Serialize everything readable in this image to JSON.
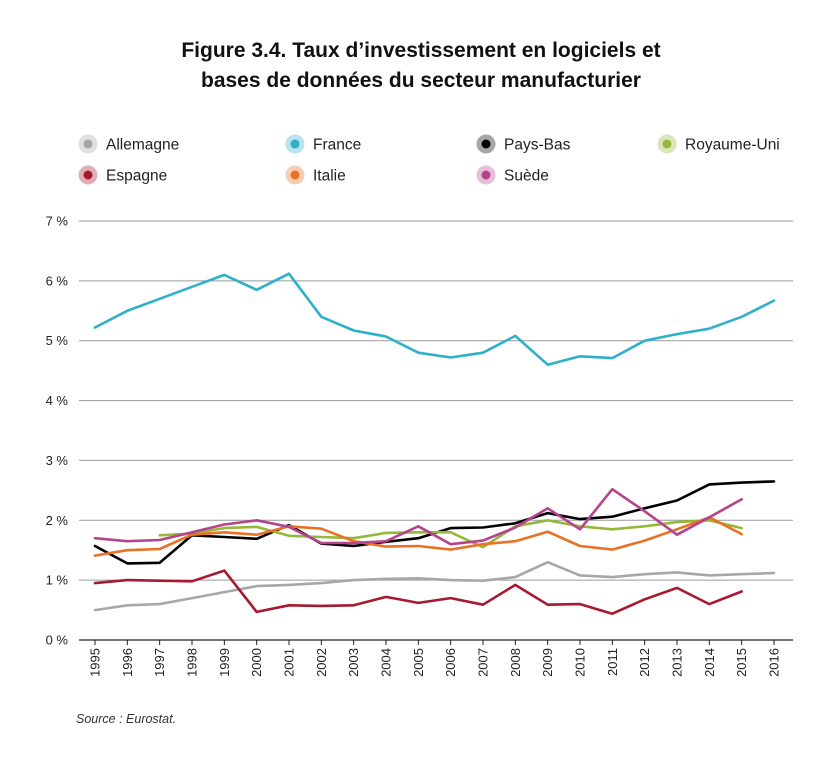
{
  "colors": {
    "Allemagne": "#a7a7a7",
    "France": "#2fb0c9",
    "Pays-Bas": "#000000",
    "Royaume-Uni": "#96b83a",
    "Espagne": "#a6192e",
    "Italie": "#ea7124",
    "Suède": "#b5448e",
    "grid": "#9a9a9a"
  },
  "source": "Source : Eurostat.",
  "chart_data": {
    "type": "line",
    "title": [
      "Figure 3.4. Taux d’investissement en logiciels et",
      "bases de données du secteur manufacturier"
    ],
    "legend_position": "top",
    "grid": "horizontal",
    "ylim": [
      0,
      7
    ],
    "yticks": [
      0,
      1,
      2,
      3,
      4,
      5,
      6,
      7
    ],
    "ytick_labels": [
      "0 %",
      "1 %",
      "2 %",
      "3 %",
      "4 %",
      "5 %",
      "6 %",
      "7 %"
    ],
    "x": [
      1995,
      1996,
      1997,
      1998,
      1999,
      2000,
      2001,
      2002,
      2003,
      2004,
      2005,
      2006,
      2007,
      2008,
      2009,
      2010,
      2011,
      2012,
      2013,
      2014,
      2015,
      2016
    ],
    "xtick_labels": [
      "1995",
      "1996",
      "1997",
      "1998",
      "1999",
      "2000",
      "2001",
      "2002",
      "2003",
      "2004",
      "2005",
      "2006",
      "2007",
      "2008",
      "2009",
      "2010",
      "2011",
      "2012",
      "2013",
      "2014",
      "2015",
      "2016"
    ],
    "series": [
      {
        "name": "Allemagne",
        "values": [
          0.5,
          0.58,
          0.6,
          0.7,
          0.8,
          0.9,
          0.92,
          0.95,
          1.0,
          1.02,
          1.03,
          1.0,
          0.99,
          1.05,
          1.3,
          1.08,
          1.05,
          1.1,
          1.13,
          1.08,
          1.1,
          1.12
        ]
      },
      {
        "name": "France",
        "values": [
          5.22,
          5.5,
          5.7,
          5.9,
          6.1,
          5.85,
          6.12,
          5.4,
          5.17,
          5.07,
          4.8,
          4.72,
          4.8,
          5.08,
          4.6,
          4.74,
          4.71,
          5.0,
          5.11,
          5.2,
          5.4,
          5.67
        ]
      },
      {
        "name": "Pays-Bas",
        "values": [
          1.57,
          1.28,
          1.29,
          1.75,
          1.72,
          1.69,
          1.92,
          1.61,
          1.57,
          1.64,
          1.7,
          1.87,
          1.88,
          1.95,
          2.12,
          2.02,
          2.06,
          2.2,
          2.33,
          2.6,
          2.63,
          2.65
        ]
      },
      {
        "name": "Royaume-Uni",
        "values": [
          null,
          null,
          1.75,
          1.78,
          1.87,
          1.89,
          1.74,
          1.72,
          1.7,
          1.79,
          1.8,
          1.8,
          1.55,
          1.9,
          2.0,
          1.9,
          1.85,
          1.9,
          1.97,
          2.0,
          1.87,
          null
        ]
      },
      {
        "name": "Espagne",
        "values": [
          0.95,
          1.0,
          0.99,
          0.98,
          1.16,
          0.47,
          0.58,
          0.57,
          0.58,
          0.72,
          0.62,
          0.7,
          0.59,
          0.92,
          0.59,
          0.6,
          0.44,
          0.68,
          0.87,
          0.6,
          0.81,
          null
        ]
      },
      {
        "name": "Italie",
        "values": [
          1.41,
          1.5,
          1.52,
          1.76,
          1.8,
          1.76,
          1.9,
          1.86,
          1.65,
          1.56,
          1.57,
          1.51,
          1.6,
          1.65,
          1.81,
          1.57,
          1.51,
          1.66,
          1.85,
          2.05,
          1.77,
          null
        ]
      },
      {
        "name": "Suède",
        "values": [
          1.7,
          1.65,
          1.67,
          1.8,
          1.93,
          2.0,
          1.89,
          1.62,
          1.62,
          1.65,
          1.9,
          1.6,
          1.66,
          1.88,
          2.2,
          1.85,
          2.52,
          2.15,
          1.76,
          2.05,
          2.35,
          null
        ]
      }
    ],
    "legend": [
      {
        "name": "Allemagne",
        "row": 0,
        "col": 0
      },
      {
        "name": "France",
        "row": 0,
        "col": 1
      },
      {
        "name": "Pays-Bas",
        "row": 0,
        "col": 2
      },
      {
        "name": "Royaume-Uni",
        "row": 0,
        "col": 3
      },
      {
        "name": "Espagne",
        "row": 1,
        "col": 0
      },
      {
        "name": "Italie",
        "row": 1,
        "col": 1
      },
      {
        "name": "Suède",
        "row": 1,
        "col": 2
      }
    ]
  }
}
